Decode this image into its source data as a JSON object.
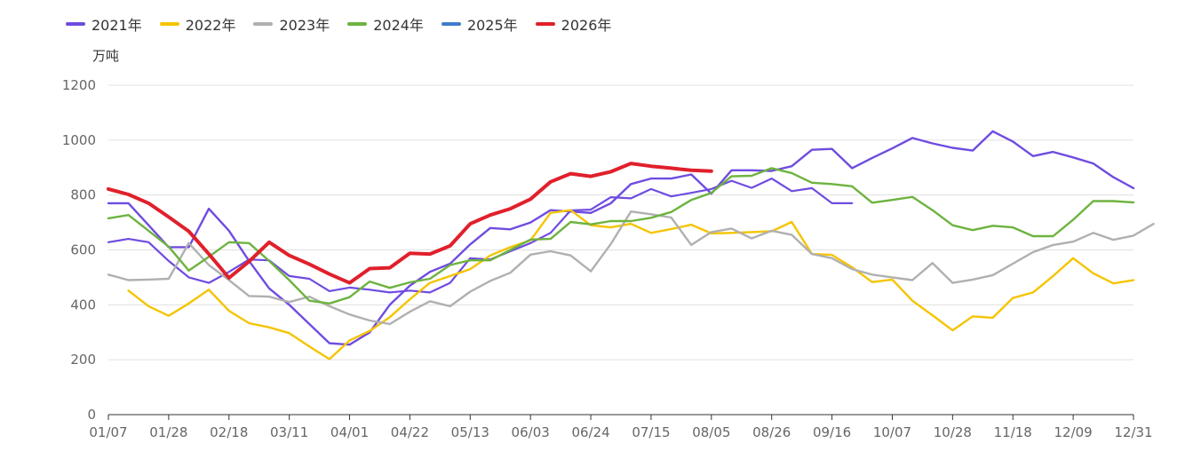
{
  "chart_data": {
    "type": "line",
    "unit": "万吨",
    "ylim": [
      0,
      1200
    ],
    "yticks": [
      0,
      200,
      400,
      600,
      800,
      1000,
      1200
    ],
    "x_ticks": [
      "01/07",
      "01/28",
      "02/18",
      "03/11",
      "04/01",
      "04/22",
      "05/13",
      "06/03",
      "06/24",
      "07/15",
      "08/05",
      "08/26",
      "09/16",
      "10/07",
      "10/28",
      "11/18",
      "12/09",
      "12/31"
    ],
    "legend_position": "top-left",
    "grid": "horizontal",
    "series": [
      {
        "name": "2021年",
        "color": "#6f4ce0",
        "values": [
          770,
          770,
          690,
          610,
          610,
          750,
          670,
          560,
          460,
          400,
          330,
          260,
          255,
          300,
          400,
          470,
          520,
          550,
          620,
          680,
          675,
          700,
          745,
          740,
          735,
          770,
          840,
          860,
          860,
          875,
          805,
          890,
          890,
          888,
          905,
          965,
          968,
          898,
          935,
          970,
          1008,
          988,
          972,
          962,
          1032,
          995,
          942,
          957,
          937,
          915,
          865,
          825
        ]
      },
      {
        "name": "2022年",
        "color": "#f5c400",
        "values": [
          null,
          452,
          395,
          360,
          405,
          455,
          378,
          333,
          318,
          297,
          248,
          202,
          270,
          305,
          355,
          420,
          480,
          505,
          530,
          580,
          610,
          635,
          735,
          745,
          690,
          682,
          695,
          662,
          676,
          692,
          660,
          662,
          665,
          668,
          702,
          585,
          582,
          537,
          483,
          492,
          415,
          362,
          307,
          358,
          353,
          425,
          445,
          505,
          570,
          515,
          478,
          490
        ]
      },
      {
        "name": "2023年",
        "color": "#b0b0b0",
        "values": [
          510,
          490,
          492,
          495,
          625,
          545,
          490,
          432,
          430,
          410,
          430,
          395,
          365,
          343,
          330,
          375,
          413,
          395,
          448,
          487,
          517,
          583,
          595,
          580,
          522,
          622,
          740,
          730,
          718,
          618,
          665,
          678,
          642,
          670,
          655,
          585,
          570,
          530,
          510,
          500,
          490,
          552,
          480,
          492,
          508,
          550,
          592,
          618,
          630,
          662,
          637,
          652,
          695
        ]
      },
      {
        "name": "2024年",
        "color": "#6db33f",
        "values": [
          715,
          727,
          670,
          612,
          525,
          575,
          628,
          625,
          560,
          490,
          415,
          405,
          428,
          485,
          462,
          482,
          495,
          545,
          562,
          562,
          600,
          638,
          640,
          702,
          693,
          705,
          705,
          717,
          738,
          782,
          808,
          868,
          870,
          898,
          880,
          845,
          840,
          832,
          772,
          782,
          793,
          745,
          690,
          672,
          688,
          682,
          650,
          650,
          710,
          778,
          778,
          773
        ]
      },
      {
        "name": "2025年",
        "color": "#3d7dca",
        "values": []
      },
      {
        "name": "2026年",
        "color": "#e0202b",
        "values": [
          822,
          802,
          770,
          720,
          668,
          585,
          498,
          558,
          628,
          580,
          548,
          512,
          480,
          532,
          535,
          588,
          585,
          615,
          695,
          727,
          750,
          785,
          848,
          878,
          868,
          885,
          915,
          905,
          898,
          890,
          887
        ]
      }
    ],
    "other_series_1": [
      {
        "name": "2021年",
        "values2": [
          628,
          640,
          628,
          560,
          500,
          480,
          520,
          565,
          562,
          505,
          495,
          450,
          463,
          455,
          445,
          452,
          445,
          480,
          570,
          565,
          595,
          625,
          662,
          744,
          747,
          792,
          788,
          822,
          795,
          808,
          822,
          852,
          826,
          860,
          814,
          825,
          770,
          770
        ]
      }
    ]
  }
}
